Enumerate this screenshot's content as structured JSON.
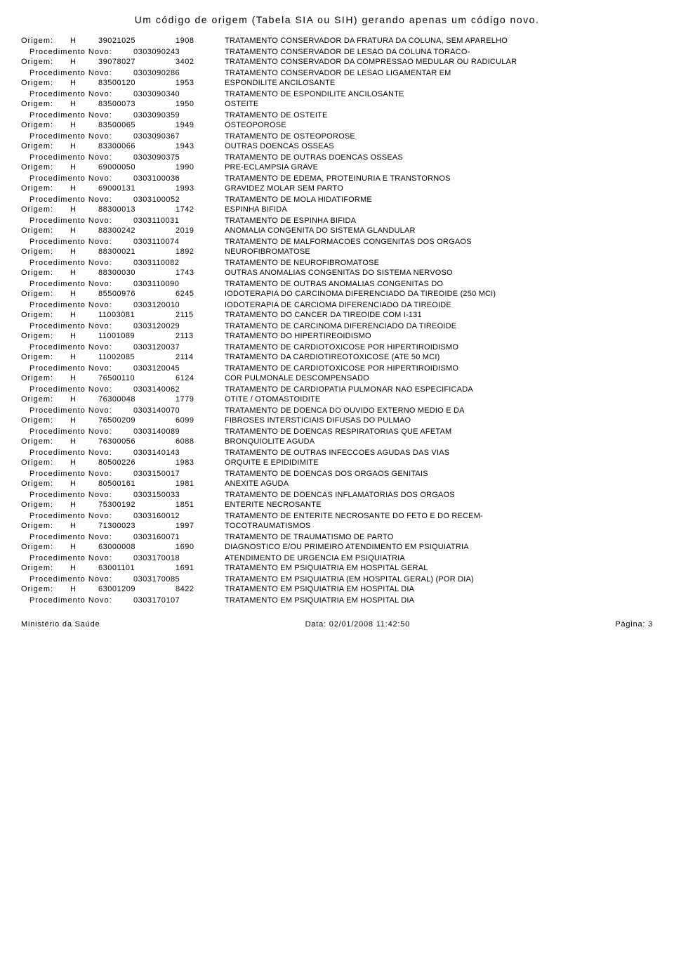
{
  "title": "Um código de origem (Tabela SIA ou SIH) gerando apenas um código novo.",
  "origem_label": "Origem:",
  "proc_label": "Procedimento Novo:",
  "entries": [
    {
      "h": "H",
      "code": "39021025",
      "code2": "1908",
      "desc": "TRATAMENTO CONSERVADOR DA FRATURA DA COLUNA, SEM APARELHO",
      "proc_code": "0303090243",
      "proc_desc": "TRATAMENTO CONSERVADOR DE LESAO DA COLUNA TORACO-"
    },
    {
      "h": "H",
      "code": "39078027",
      "code2": "3402",
      "desc": "TRATAMENTO CONSERVADOR DA COMPRESSAO MEDULAR OU RADICULAR",
      "proc_code": "0303090286",
      "proc_desc": "TRATAMENTO CONSERVADOR DE LESAO LIGAMENTAR EM"
    },
    {
      "h": "H",
      "code": "83500120",
      "code2": "1953",
      "desc": "ESPONDILITE ANCILOSANTE",
      "proc_code": "0303090340",
      "proc_desc": "TRATAMENTO DE ESPONDILITE ANCILOSANTE"
    },
    {
      "h": "H",
      "code": "83500073",
      "code2": "1950",
      "desc": "OSTEITE",
      "proc_code": "0303090359",
      "proc_desc": "TRATAMENTO DE OSTEITE"
    },
    {
      "h": "H",
      "code": "83500065",
      "code2": "1949",
      "desc": "OSTEOPOROSE",
      "proc_code": "0303090367",
      "proc_desc": "TRATAMENTO DE OSTEOPOROSE"
    },
    {
      "h": "H",
      "code": "83300066",
      "code2": "1943",
      "desc": "OUTRAS DOENCAS OSSEAS",
      "proc_code": "0303090375",
      "proc_desc": "TRATAMENTO DE OUTRAS DOENCAS OSSEAS"
    },
    {
      "h": "H",
      "code": "69000050",
      "code2": "1990",
      "desc": "PRE-ECLAMPSIA GRAVE",
      "proc_code": "0303100036",
      "proc_desc": "TRATAMENTO DE EDEMA, PROTEINURIA E TRANSTORNOS"
    },
    {
      "h": "H",
      "code": "69000131",
      "code2": "1993",
      "desc": "GRAVIDEZ MOLAR SEM PARTO",
      "proc_code": "0303100052",
      "proc_desc": "TRATAMENTO DE MOLA HIDATIFORME"
    },
    {
      "h": "H",
      "code": "88300013",
      "code2": "1742",
      "desc": "ESPINHA BIFIDA",
      "proc_code": "0303110031",
      "proc_desc": "TRATAMENTO DE ESPINHA BIFIDA"
    },
    {
      "h": "H",
      "code": "88300242",
      "code2": "2019",
      "desc": "ANOMALIA CONGENITA DO SISTEMA GLANDULAR",
      "proc_code": "0303110074",
      "proc_desc": "TRATAMENTO DE MALFORMACOES CONGENITAS DOS ORGAOS"
    },
    {
      "h": "H",
      "code": "88300021",
      "code2": "1892",
      "desc": "NEUROFIBROMATOSE",
      "proc_code": "0303110082",
      "proc_desc": "TRATAMENTO DE NEUROFIBROMATOSE"
    },
    {
      "h": "H",
      "code": "88300030",
      "code2": "1743",
      "desc": "OUTRAS ANOMALIAS CONGENITAS DO SISTEMA NERVOSO",
      "proc_code": "0303110090",
      "proc_desc": "TRATAMENTO DE OUTRAS ANOMALIAS CONGENITAS DO"
    },
    {
      "h": "H",
      "code": "85500976",
      "code2": "6245",
      "desc": "IODOTERAPIA DO CARCINOMA DIFERENCIADO DA TIREOIDE (250 MCI)",
      "proc_code": "0303120010",
      "proc_desc": "IODOTERAPIA DE CARCIOMA DIFERENCIADO DA TIREOIDE"
    },
    {
      "h": "H",
      "code": "11003081",
      "code2": "2115",
      "desc": "TRATAMENTO DO CANCER DA TIREOIDE COM I-131",
      "proc_code": "0303120029",
      "proc_desc": "TRATAMENTO DE CARCINOMA DIFERENCIADO DA TIREOIDE"
    },
    {
      "h": "H",
      "code": "11001089",
      "code2": "2113",
      "desc": "TRATAMENTO DO HIPERTIREOIDISMO",
      "proc_code": "0303120037",
      "proc_desc": "TRATAMENTO DE CARDIOTOXICOSE POR HIPERTIROIDISMO"
    },
    {
      "h": "H",
      "code": "11002085",
      "code2": "2114",
      "desc": "TRATAMENTO DA CARDIOTIREOTOXICOSE (ATE 50 MCI)",
      "proc_code": "0303120045",
      "proc_desc": "TRATAMENTO DE CARDIOTOXICOSE POR HIPERTIROIDISMO"
    },
    {
      "h": "H",
      "code": "76500110",
      "code2": "6124",
      "desc": "COR PULMONALE DESCOMPENSADO",
      "proc_code": "0303140062",
      "proc_desc": "TRATAMENTO DE CARDIOPATIA PULMONAR NAO ESPECIFICADA"
    },
    {
      "h": "H",
      "code": "76300048",
      "code2": "1779",
      "desc": "OTITE / OTOMASTOIDITE",
      "proc_code": "0303140070",
      "proc_desc": "TRATAMENTO DE DOENCA DO OUVIDO EXTERNO MEDIO E DA"
    },
    {
      "h": "H",
      "code": "76500209",
      "code2": "6099",
      "desc": "FIBROSES INTERSTICIAIS DIFUSAS DO PULMAO",
      "proc_code": "0303140089",
      "proc_desc": "TRATAMENTO DE DOENCAS RESPIRATORIAS QUE AFETAM"
    },
    {
      "h": "H",
      "code": "76300056",
      "code2": "6088",
      "desc": "BRONQUIOLITE AGUDA",
      "proc_code": "0303140143",
      "proc_desc": "TRATAMENTO DE OUTRAS INFECCOES AGUDAS DAS VIAS"
    },
    {
      "h": "H",
      "code": "80500226",
      "code2": "1983",
      "desc": "ORQUITE E EPIDIDIMITE",
      "proc_code": "0303150017",
      "proc_desc": "TRATAMENTO DE DOENCAS DOS ORGAOS GENITAIS"
    },
    {
      "h": "H",
      "code": "80500161",
      "code2": "1981",
      "desc": "ANEXITE AGUDA",
      "proc_code": "0303150033",
      "proc_desc": "TRATAMENTO DE DOENCAS INFLAMATORIAS DOS ORGAOS"
    },
    {
      "h": "H",
      "code": "75300192",
      "code2": "1851",
      "desc": "ENTERITE NECROSANTE",
      "proc_code": "0303160012",
      "proc_desc": "TRATAMENTO DE ENTERITE NECROSANTE DO FETO E DO RECEM-"
    },
    {
      "h": "H",
      "code": "71300023",
      "code2": "1997",
      "desc": "TOCOTRAUMATISMOS",
      "proc_code": "0303160071",
      "proc_desc": "TRATAMENTO DE TRAUMATISMO DE PARTO"
    },
    {
      "h": "H",
      "code": "63000008",
      "code2": "1690",
      "desc": "DIAGNOSTICO E/OU PRIMEIRO ATENDIMENTO EM PSIQUIATRIA",
      "proc_code": "0303170018",
      "proc_desc": "ATENDIMENTO DE URGENCIA EM PSIQUIATRIA"
    },
    {
      "h": "H",
      "code": "63001101",
      "code2": "1691",
      "desc": "TRATAMENTO EM PSIQUIATRIA EM HOSPITAL GERAL",
      "proc_code": "0303170085",
      "proc_desc": "TRATAMENTO EM PSIQUIATRIA (EM HOSPITAL GERAL) (POR DIA)"
    },
    {
      "h": "H",
      "code": "63001209",
      "code2": "8422",
      "desc": "TRATAMENTO EM PSIQUIATRIA EM HOSPITAL DIA",
      "proc_code": "0303170107",
      "proc_desc": "TRATAMENTO EM PSIQUIATRIA EM HOSPITAL DIA"
    }
  ],
  "footer_left": "Ministério da Saúde",
  "footer_center": "Data: 02/01/2008 11:42:50",
  "footer_right": "Página: 3"
}
